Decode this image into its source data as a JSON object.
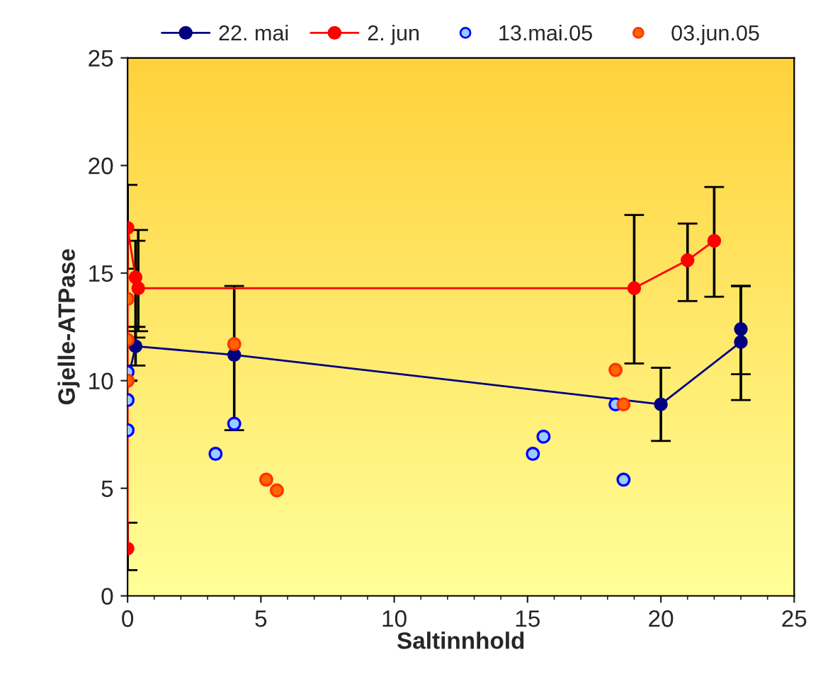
{
  "chart_data": {
    "type": "line",
    "xlabel": "Saltinnhold",
    "ylabel": "Gjelle-ATPase",
    "xlim": [
      0,
      25
    ],
    "ylim": [
      0,
      25
    ],
    "xticks": [
      0,
      5,
      10,
      15,
      20,
      25
    ],
    "yticks": [
      0,
      5,
      10,
      15,
      20,
      25
    ],
    "grid": false,
    "legend": "top",
    "marker": "circle",
    "series": [
      {
        "name": "22. mai",
        "color": "#000080",
        "x": [
          0,
          0.3,
          4,
          20,
          23,
          23
        ],
        "values": [
          10.0,
          11.6,
          11.2,
          8.9,
          11.8,
          12.4
        ],
        "errors": [
          null,
          [
            10.7,
            12.5
          ],
          [
            7.7,
            14.4
          ],
          [
            7.2,
            10.6
          ],
          [
            9.1,
            14.4
          ],
          [
            10.3,
            14.4
          ]
        ]
      },
      {
        "name": "2. jun",
        "color": "#ff0000",
        "x": [
          0,
          0,
          0.3,
          0.4,
          19,
          21,
          22
        ],
        "values": [
          2.2,
          17.1,
          14.8,
          14.3,
          14.3,
          15.6,
          16.5
        ],
        "errors": [
          [
            1.2,
            3.4
          ],
          [
            15.2,
            19.1
          ],
          [
            12.0,
            16.5
          ],
          [
            12.3,
            17.0
          ],
          [
            10.8,
            17.7
          ],
          [
            13.7,
            17.3
          ],
          [
            13.9,
            19.0
          ]
        ]
      },
      {
        "name": "13.mai.05",
        "type": "scatter",
        "color": "#0000ff",
        "x": [
          0,
          0,
          0,
          3.3,
          4,
          15.2,
          15.6,
          18.3,
          18.6
        ],
        "values": [
          10.4,
          9.1,
          7.7,
          6.6,
          8.0,
          6.6,
          7.4,
          8.9,
          5.4
        ]
      },
      {
        "name": "03.jun.05",
        "type": "scatter",
        "color": "#ff3300",
        "x": [
          0,
          0,
          0,
          4,
          5.2,
          5.6,
          18.3,
          18.6
        ],
        "values": [
          13.8,
          11.9,
          10.0,
          11.7,
          5.4,
          4.9,
          10.5,
          8.9
        ]
      }
    ]
  }
}
